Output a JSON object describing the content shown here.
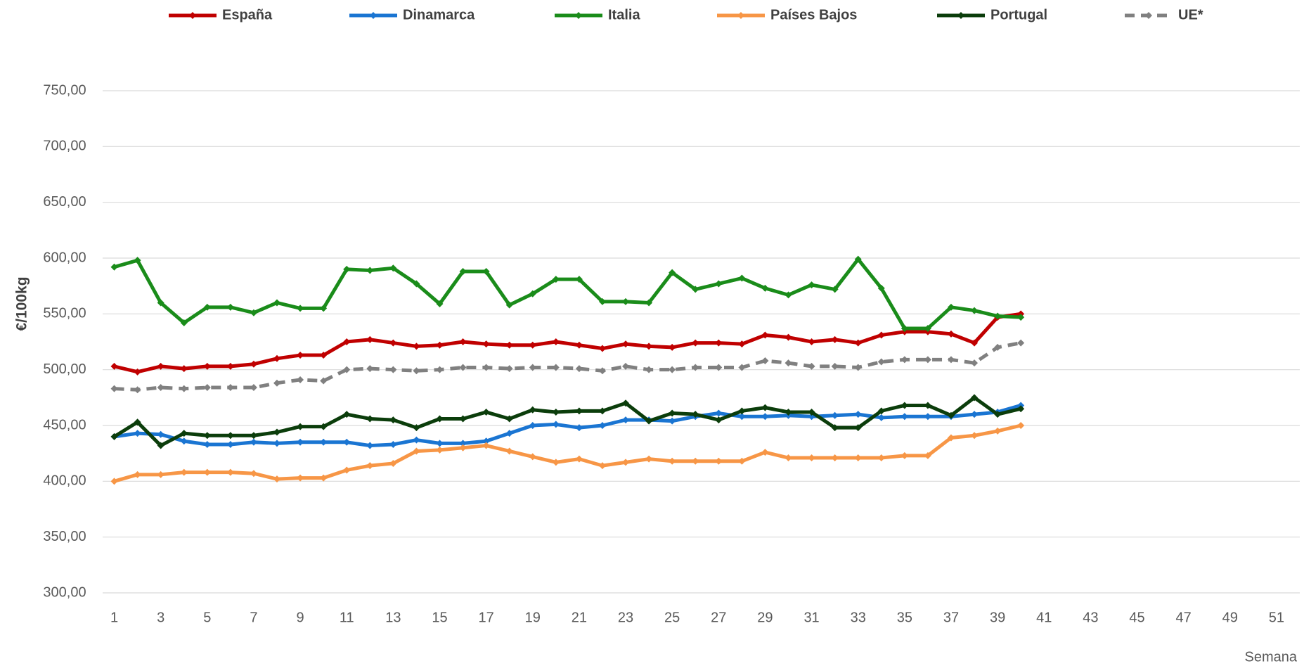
{
  "chart_data": {
    "type": "line",
    "y_label": "€/100kg",
    "x_label": "Semana",
    "x": [
      1,
      2,
      3,
      4,
      5,
      6,
      7,
      8,
      9,
      10,
      11,
      12,
      13,
      14,
      15,
      16,
      17,
      18,
      19,
      20,
      21,
      22,
      23,
      24,
      25,
      26,
      27,
      28,
      29,
      30,
      31,
      32,
      33,
      34,
      35,
      36,
      37,
      38,
      39,
      40
    ],
    "xlim": [
      0.5,
      52
    ],
    "xticks": [
      1,
      3,
      5,
      7,
      9,
      11,
      13,
      15,
      17,
      19,
      21,
      23,
      25,
      27,
      29,
      31,
      33,
      35,
      37,
      39,
      41,
      43,
      45,
      47,
      49,
      51
    ],
    "ylim": [
      300,
      750
    ],
    "yticks": [
      {
        "value": 300,
        "label": "300,00"
      },
      {
        "value": 350,
        "label": "350,00"
      },
      {
        "value": 400,
        "label": "400,00"
      },
      {
        "value": 450,
        "label": "450,00"
      },
      {
        "value": 500,
        "label": "500,00"
      },
      {
        "value": 550,
        "label": "550,00"
      },
      {
        "value": 600,
        "label": "600,00"
      },
      {
        "value": 650,
        "label": "650,00"
      },
      {
        "value": 700,
        "label": "700,00"
      },
      {
        "value": 750,
        "label": "750,00"
      }
    ],
    "grid": true,
    "legend": "top",
    "series": [
      {
        "name": "España",
        "color": "#c00000",
        "values": [
          503,
          498,
          503,
          501,
          503,
          503,
          505,
          510,
          513,
          513,
          525,
          527,
          524,
          521,
          522,
          525,
          523,
          522,
          522,
          525,
          522,
          519,
          523,
          521,
          520,
          524,
          524,
          523,
          531,
          529,
          525,
          527,
          524,
          531,
          534,
          534,
          532,
          524,
          547,
          550
        ]
      },
      {
        "name": "Dinamarca",
        "color": "#1a75d2",
        "values": [
          440,
          443,
          442,
          436,
          433,
          433,
          435,
          434,
          435,
          435,
          435,
          432,
          433,
          437,
          434,
          434,
          436,
          443,
          450,
          451,
          448,
          450,
          455,
          455,
          454,
          458,
          461,
          458,
          458,
          459,
          458,
          459,
          460,
          457,
          458,
          458,
          458,
          460,
          462,
          468
        ]
      },
      {
        "name": "Italia",
        "color": "#1a8c1a",
        "values": [
          592,
          598,
          560,
          542,
          556,
          556,
          551,
          560,
          555,
          555,
          590,
          589,
          591,
          577,
          559,
          588,
          588,
          558,
          568,
          581,
          581,
          561,
          561,
          560,
          587,
          572,
          577,
          582,
          573,
          567,
          576,
          572,
          599,
          573,
          537,
          537,
          556,
          553,
          548,
          547
        ]
      },
      {
        "name": "Países Bajos",
        "color": "#f79646",
        "values": [
          400,
          406,
          406,
          408,
          408,
          408,
          407,
          402,
          403,
          403,
          410,
          414,
          416,
          427,
          428,
          430,
          432,
          427,
          422,
          417,
          420,
          414,
          417,
          420,
          418,
          418,
          418,
          418,
          426,
          421,
          421,
          421,
          421,
          421,
          423,
          423,
          439,
          441,
          445,
          450
        ]
      },
      {
        "name": "Portugal",
        "color": "#0b3d0b",
        "values": [
          440,
          453,
          432,
          443,
          441,
          441,
          441,
          444,
          449,
          449,
          460,
          456,
          455,
          448,
          456,
          456,
          462,
          456,
          464,
          462,
          463,
          463,
          470,
          454,
          461,
          460,
          455,
          463,
          466,
          462,
          462,
          448,
          448,
          463,
          468,
          468,
          459,
          475,
          460,
          465
        ]
      },
      {
        "name": "UE*",
        "color": "#808080",
        "dashed": true,
        "values": [
          483,
          482,
          484,
          483,
          484,
          484,
          484,
          488,
          491,
          490,
          500,
          501,
          500,
          499,
          500,
          502,
          502,
          501,
          502,
          502,
          501,
          499,
          503,
          500,
          500,
          502,
          502,
          502,
          508,
          506,
          503,
          503,
          502,
          507,
          509,
          509,
          509,
          506,
          520,
          524
        ]
      }
    ]
  }
}
